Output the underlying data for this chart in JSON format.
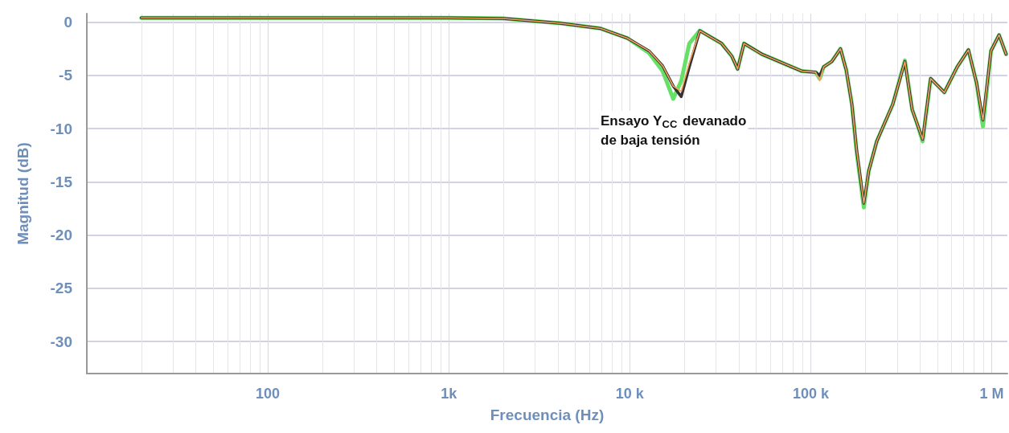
{
  "chart_data": {
    "type": "line",
    "xlabel": "Frecuencia (Hz)",
    "ylabel": "Magnitud (dB)",
    "log": "x",
    "xlim": [
      10,
      1220000
    ],
    "ylim": [
      -33,
      0.8
    ],
    "xticks": [
      100,
      {
        "value": 1000,
        "label": "1k"
      },
      {
        "value": 10000,
        "label": "10 k"
      },
      {
        "value": 100000,
        "label": "100 k"
      },
      {
        "value": 1000000,
        "label": "1 M"
      }
    ],
    "yticks": [
      0,
      -5,
      -10,
      -15,
      -20,
      -25,
      -30
    ],
    "grid": true,
    "marker": "none",
    "line_style": "solid",
    "annotations": [
      "Ensayo Y$_{CC}$ devanado\nde baja tensión"
    ],
    "x": [
      20,
      1000,
      2000,
      4150,
      6920,
      9700,
      12790,
      15200,
      17380,
      19250,
      21330,
      24370,
      32140,
      36640,
      39440,
      42760,
      53550,
      89330,
      106400,
      112000,
      117800,
      130500,
      145900,
      157000,
      168700,
      179200,
      196400,
      208900,
      231400,
      284000,
      331100,
      363100,
      386200,
      415000,
      459500,
      547000,
      644200,
      743000,
      824000,
      893500,
      990000,
      1097000,
      1200000
    ],
    "series": [
      {
        "color": "#66e066",
        "values": [
          0.4,
          0.4,
          0.35,
          -0.1,
          -0.6,
          -1.5,
          -2.9,
          -4.6,
          -7.2,
          -5.5,
          -2.0,
          -0.8,
          -2.0,
          -3.2,
          -4.4,
          -2.0,
          -3.0,
          -4.6,
          -4.7,
          -5.3,
          -4.2,
          -3.7,
          -2.5,
          -4.5,
          -7.7,
          -12.2,
          -17.4,
          -14.0,
          -11.2,
          -7.7,
          -3.6,
          -8.2,
          -9.5,
          -11.2,
          -5.3,
          -6.6,
          -4.2,
          -2.6,
          -5.7,
          -9.8,
          -2.7,
          -1.2,
          -3.0
        ]
      },
      {
        "color": "#333333",
        "values": [
          0.4,
          0.4,
          0.35,
          -0.1,
          -0.6,
          -1.5,
          -2.7,
          -4.1,
          -6.0,
          -7.0,
          -4.2,
          -0.8,
          -2.0,
          -3.2,
          -4.4,
          -2.0,
          -3.0,
          -4.6,
          -4.7,
          -5.0,
          -4.2,
          -3.7,
          -2.5,
          -4.5,
          -7.7,
          -12.0,
          -17.0,
          -14.0,
          -11.2,
          -7.7,
          -3.7,
          -8.2,
          -9.5,
          -11.0,
          -5.3,
          -6.6,
          -4.2,
          -2.6,
          -5.7,
          -9.2,
          -2.7,
          -1.2,
          -3.0
        ]
      },
      {
        "color": "#f5a35c",
        "values": [
          0.4,
          0.4,
          0.35,
          -0.1,
          -0.6,
          -1.5,
          -2.7,
          -4.1,
          -6.0,
          -6.5,
          -3.8,
          -0.8,
          -2.0,
          -3.2,
          -4.4,
          -2.0,
          -3.0,
          -4.6,
          -4.7,
          -5.5,
          -4.2,
          -3.7,
          -2.5,
          -4.5,
          -7.7,
          -12.0,
          -17.0,
          -14.0,
          -11.2,
          -7.7,
          -3.7,
          -8.2,
          -9.5,
          -11.0,
          -5.3,
          -6.6,
          -4.2,
          -2.6,
          -5.7,
          -9.2,
          -2.7,
          -1.2,
          -3.0
        ]
      }
    ]
  }
}
